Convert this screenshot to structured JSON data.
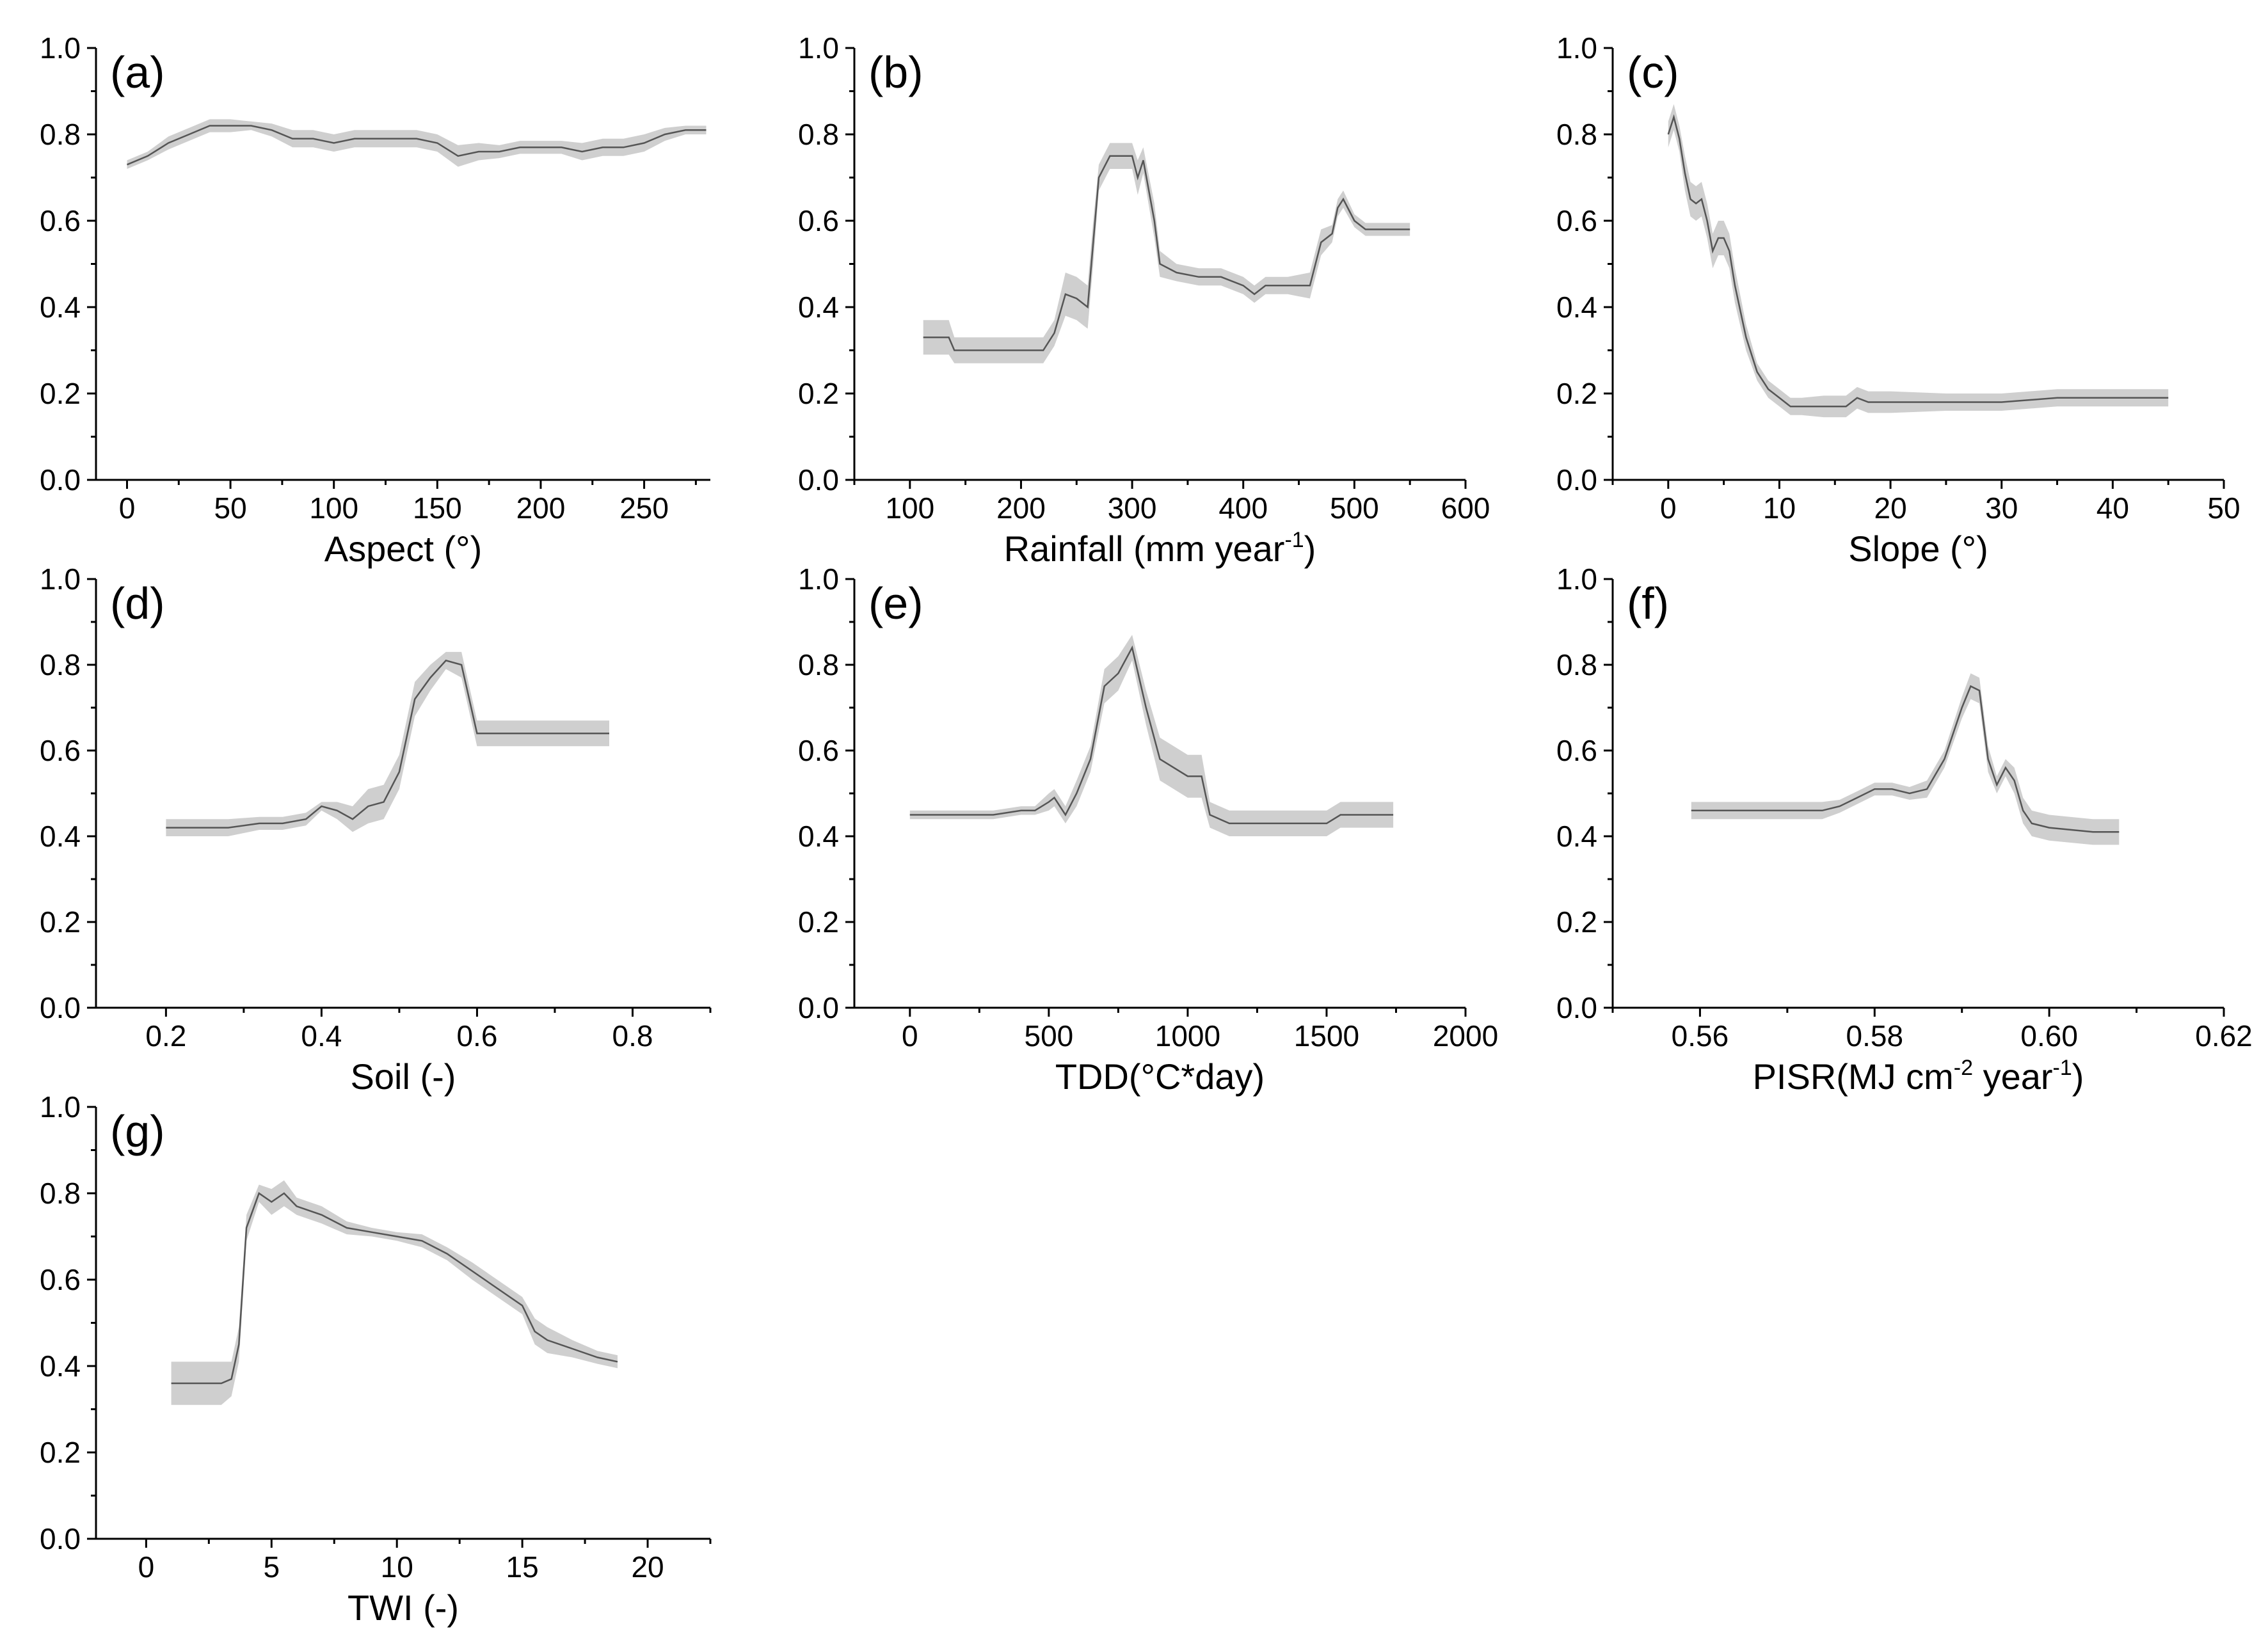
{
  "colors": {
    "band": "#cfcfcf",
    "line": "#555555",
    "axis": "#000000"
  },
  "chart_data": [
    {
      "panel": "(a)",
      "type": "area",
      "xlabel": "Aspect (°)",
      "xlabel_sup": "",
      "xlabel_tail": "",
      "xlim": [
        -15,
        282
      ],
      "ylim": [
        0,
        1
      ],
      "xticks": [
        0,
        50,
        100,
        150,
        200,
        250
      ],
      "xtick_labels": [
        "0",
        "50",
        "100",
        "150",
        "200",
        "250"
      ],
      "yticks": [
        0,
        0.2,
        0.4,
        0.6,
        0.8,
        1.0
      ],
      "ytick_labels": [
        "0.0",
        "0.2",
        "0.4",
        "0.6",
        "0.8",
        "1.0"
      ],
      "x": [
        0,
        10,
        20,
        30,
        40,
        50,
        60,
        70,
        80,
        90,
        100,
        110,
        120,
        130,
        140,
        150,
        160,
        170,
        180,
        190,
        200,
        210,
        220,
        230,
        240,
        250,
        260,
        270,
        280
      ],
      "y": [
        0.73,
        0.75,
        0.78,
        0.8,
        0.82,
        0.82,
        0.82,
        0.81,
        0.79,
        0.79,
        0.78,
        0.79,
        0.79,
        0.79,
        0.79,
        0.78,
        0.75,
        0.76,
        0.76,
        0.77,
        0.77,
        0.77,
        0.76,
        0.77,
        0.77,
        0.78,
        0.8,
        0.81,
        0.81
      ],
      "band": [
        0.01,
        0.01,
        0.015,
        0.015,
        0.015,
        0.015,
        0.01,
        0.015,
        0.02,
        0.02,
        0.02,
        0.02,
        0.02,
        0.02,
        0.02,
        0.02,
        0.025,
        0.02,
        0.015,
        0.015,
        0.015,
        0.015,
        0.02,
        0.02,
        0.02,
        0.02,
        0.015,
        0.01,
        0.01
      ]
    },
    {
      "panel": "(b)",
      "type": "area",
      "xlabel": "Rainfall (mm year",
      "xlabel_sup": "-1",
      "xlabel_tail": ")",
      "xlim": [
        50,
        600
      ],
      "ylim": [
        0,
        1
      ],
      "xticks": [
        100,
        200,
        300,
        400,
        500,
        600
      ],
      "xtick_labels": [
        "100",
        "200",
        "300",
        "400",
        "500",
        "600"
      ],
      "yticks": [
        0,
        0.2,
        0.4,
        0.6,
        0.8,
        1.0
      ],
      "ytick_labels": [
        "0.0",
        "0.2",
        "0.4",
        "0.6",
        "0.8",
        "1.0"
      ],
      "x": [
        112,
        135,
        140,
        170,
        200,
        220,
        230,
        240,
        250,
        260,
        265,
        270,
        280,
        290,
        300,
        305,
        310,
        320,
        325,
        340,
        360,
        380,
        400,
        410,
        420,
        440,
        460,
        470,
        480,
        485,
        490,
        500,
        510,
        550
      ],
      "y": [
        0.33,
        0.33,
        0.3,
        0.3,
        0.3,
        0.3,
        0.34,
        0.43,
        0.42,
        0.4,
        0.55,
        0.7,
        0.75,
        0.75,
        0.75,
        0.7,
        0.74,
        0.6,
        0.5,
        0.48,
        0.47,
        0.47,
        0.45,
        0.43,
        0.45,
        0.45,
        0.45,
        0.55,
        0.57,
        0.63,
        0.65,
        0.6,
        0.58,
        0.58
      ],
      "band": [
        0.04,
        0.04,
        0.03,
        0.03,
        0.03,
        0.03,
        0.03,
        0.05,
        0.05,
        0.05,
        0.05,
        0.03,
        0.03,
        0.03,
        0.03,
        0.04,
        0.03,
        0.04,
        0.03,
        0.02,
        0.02,
        0.02,
        0.02,
        0.02,
        0.02,
        0.02,
        0.03,
        0.03,
        0.02,
        0.02,
        0.02,
        0.015,
        0.015,
        0.015
      ]
    },
    {
      "panel": "(c)",
      "type": "area",
      "xlabel": "Slope (°)",
      "xlabel_sup": "",
      "xlabel_tail": "",
      "xlim": [
        -5,
        50
      ],
      "ylim": [
        0,
        1
      ],
      "xticks": [
        0,
        10,
        20,
        30,
        40,
        50
      ],
      "xtick_labels": [
        "0",
        "10",
        "20",
        "30",
        "40",
        "50"
      ],
      "yticks": [
        0,
        0.2,
        0.4,
        0.6,
        0.8,
        1.0
      ],
      "ytick_labels": [
        "0.0",
        "0.2",
        "0.4",
        "0.6",
        "0.8",
        "1.0"
      ],
      "x": [
        0,
        0.5,
        1,
        1.5,
        2,
        2.5,
        3,
        3.5,
        4,
        4.5,
        5,
        5.5,
        6,
        7,
        8,
        9,
        10,
        11,
        12,
        14,
        15,
        16,
        17,
        18,
        20,
        25,
        30,
        35,
        40,
        45
      ],
      "y": [
        0.8,
        0.84,
        0.79,
        0.71,
        0.65,
        0.64,
        0.65,
        0.6,
        0.53,
        0.56,
        0.56,
        0.53,
        0.45,
        0.33,
        0.25,
        0.21,
        0.19,
        0.17,
        0.17,
        0.17,
        0.17,
        0.17,
        0.19,
        0.18,
        0.18,
        0.18,
        0.18,
        0.19,
        0.19,
        0.19
      ],
      "band": [
        0.03,
        0.03,
        0.03,
        0.04,
        0.04,
        0.04,
        0.04,
        0.04,
        0.04,
        0.04,
        0.04,
        0.04,
        0.04,
        0.03,
        0.02,
        0.02,
        0.02,
        0.02,
        0.02,
        0.025,
        0.025,
        0.025,
        0.025,
        0.025,
        0.025,
        0.02,
        0.02,
        0.02,
        0.02,
        0.02
      ]
    },
    {
      "panel": "(d)",
      "type": "area",
      "xlabel": "Soil (-)",
      "xlabel_sup": "",
      "xlabel_tail": "",
      "xlim": [
        0.11,
        0.9
      ],
      "ylim": [
        0,
        1
      ],
      "xticks": [
        0.2,
        0.4,
        0.6,
        0.8
      ],
      "xtick_labels": [
        "0.2",
        "0.4",
        "0.6",
        "0.8"
      ],
      "yticks": [
        0,
        0.2,
        0.4,
        0.6,
        0.8,
        1.0
      ],
      "ytick_labels": [
        "0.0",
        "0.2",
        "0.4",
        "0.6",
        "0.8",
        "1.0"
      ],
      "x": [
        0.2,
        0.25,
        0.28,
        0.32,
        0.35,
        0.38,
        0.4,
        0.42,
        0.44,
        0.46,
        0.48,
        0.5,
        0.52,
        0.54,
        0.56,
        0.58,
        0.6,
        0.62,
        0.7,
        0.77
      ],
      "y": [
        0.42,
        0.42,
        0.42,
        0.43,
        0.43,
        0.44,
        0.47,
        0.46,
        0.44,
        0.47,
        0.48,
        0.55,
        0.72,
        0.77,
        0.81,
        0.8,
        0.64,
        0.64,
        0.64,
        0.64
      ],
      "band": [
        0.02,
        0.02,
        0.02,
        0.015,
        0.015,
        0.015,
        0.01,
        0.02,
        0.03,
        0.04,
        0.04,
        0.04,
        0.04,
        0.03,
        0.02,
        0.03,
        0.03,
        0.03,
        0.03,
        0.03
      ]
    },
    {
      "panel": "(e)",
      "type": "area",
      "xlabel": "TDD(°C*day)",
      "xlabel_sup": "",
      "xlabel_tail": "",
      "xlim": [
        -200,
        2000
      ],
      "ylim": [
        0,
        1
      ],
      "xticks": [
        0,
        500,
        1000,
        1500,
        2000
      ],
      "xtick_labels": [
        "0",
        "500",
        "1000",
        "1500",
        "2000"
      ],
      "yticks": [
        0,
        0.2,
        0.4,
        0.6,
        0.8,
        1.0
      ],
      "ytick_labels": [
        "0.0",
        "0.2",
        "0.4",
        "0.6",
        "0.8",
        "1.0"
      ],
      "x": [
        0,
        100,
        200,
        300,
        400,
        450,
        500,
        520,
        560,
        600,
        650,
        700,
        750,
        800,
        850,
        900,
        1000,
        1050,
        1080,
        1150,
        1300,
        1500,
        1550,
        1600,
        1740
      ],
      "y": [
        0.45,
        0.45,
        0.45,
        0.45,
        0.46,
        0.46,
        0.48,
        0.49,
        0.45,
        0.5,
        0.58,
        0.75,
        0.78,
        0.84,
        0.7,
        0.58,
        0.54,
        0.54,
        0.45,
        0.43,
        0.43,
        0.43,
        0.45,
        0.45,
        0.45
      ],
      "band": [
        0.01,
        0.01,
        0.01,
        0.01,
        0.01,
        0.01,
        0.02,
        0.02,
        0.02,
        0.03,
        0.03,
        0.04,
        0.04,
        0.03,
        0.04,
        0.05,
        0.05,
        0.05,
        0.03,
        0.03,
        0.03,
        0.03,
        0.03,
        0.03,
        0.03
      ]
    },
    {
      "panel": "(f)",
      "type": "area",
      "xlabel": "PISR(MJ cm",
      "xlabel_sup": "-2",
      "xlabel_tail": " year",
      "xlabel_sup2": "-1",
      "xlabel_tail2": ")",
      "xlim": [
        0.55,
        0.62
      ],
      "ylim": [
        0,
        1
      ],
      "xticks": [
        0.56,
        0.58,
        0.6,
        0.62
      ],
      "xtick_labels": [
        "0.56",
        "0.58",
        "0.60",
        "0.62"
      ],
      "yticks": [
        0,
        0.2,
        0.4,
        0.6,
        0.8,
        1.0
      ],
      "ytick_labels": [
        "0.0",
        "0.2",
        "0.4",
        "0.6",
        "0.8",
        "1.0"
      ],
      "x": [
        0.559,
        0.565,
        0.57,
        0.574,
        0.576,
        0.578,
        0.58,
        0.582,
        0.584,
        0.586,
        0.588,
        0.59,
        0.591,
        0.592,
        0.593,
        0.594,
        0.595,
        0.596,
        0.597,
        0.598,
        0.6,
        0.605,
        0.608
      ],
      "y": [
        0.46,
        0.46,
        0.46,
        0.46,
        0.47,
        0.49,
        0.51,
        0.51,
        0.5,
        0.51,
        0.58,
        0.7,
        0.75,
        0.74,
        0.58,
        0.52,
        0.56,
        0.53,
        0.46,
        0.43,
        0.42,
        0.41,
        0.41
      ],
      "band": [
        0.02,
        0.02,
        0.02,
        0.02,
        0.015,
        0.015,
        0.015,
        0.015,
        0.015,
        0.02,
        0.02,
        0.025,
        0.03,
        0.03,
        0.03,
        0.02,
        0.02,
        0.03,
        0.03,
        0.03,
        0.03,
        0.03,
        0.03
      ]
    },
    {
      "panel": "(g)",
      "type": "area",
      "xlabel": "TWI (-)",
      "xlabel_sup": "",
      "xlabel_tail": "",
      "xlim": [
        -2,
        22.5
      ],
      "ylim": [
        0,
        1
      ],
      "xticks": [
        0,
        5,
        10,
        15,
        20
      ],
      "xtick_labels": [
        "0",
        "5",
        "10",
        "15",
        "20"
      ],
      "yticks": [
        0,
        0.2,
        0.4,
        0.6,
        0.8,
        1.0
      ],
      "ytick_labels": [
        "0.0",
        "0.2",
        "0.4",
        "0.6",
        "0.8",
        "1.0"
      ],
      "x": [
        1,
        2,
        3,
        3.4,
        3.7,
        4,
        4.5,
        5,
        5.5,
        6,
        7,
        8,
        9,
        10,
        11,
        12,
        13,
        14,
        15,
        15.5,
        16,
        17,
        18,
        18.8
      ],
      "y": [
        0.36,
        0.36,
        0.36,
        0.37,
        0.45,
        0.72,
        0.8,
        0.78,
        0.8,
        0.77,
        0.75,
        0.72,
        0.71,
        0.7,
        0.69,
        0.66,
        0.62,
        0.58,
        0.54,
        0.48,
        0.46,
        0.44,
        0.42,
        0.41
      ],
      "band": [
        0.05,
        0.05,
        0.05,
        0.04,
        0.04,
        0.03,
        0.02,
        0.03,
        0.03,
        0.02,
        0.02,
        0.015,
        0.01,
        0.01,
        0.015,
        0.015,
        0.02,
        0.02,
        0.02,
        0.03,
        0.03,
        0.02,
        0.015,
        0.015
      ]
    }
  ]
}
